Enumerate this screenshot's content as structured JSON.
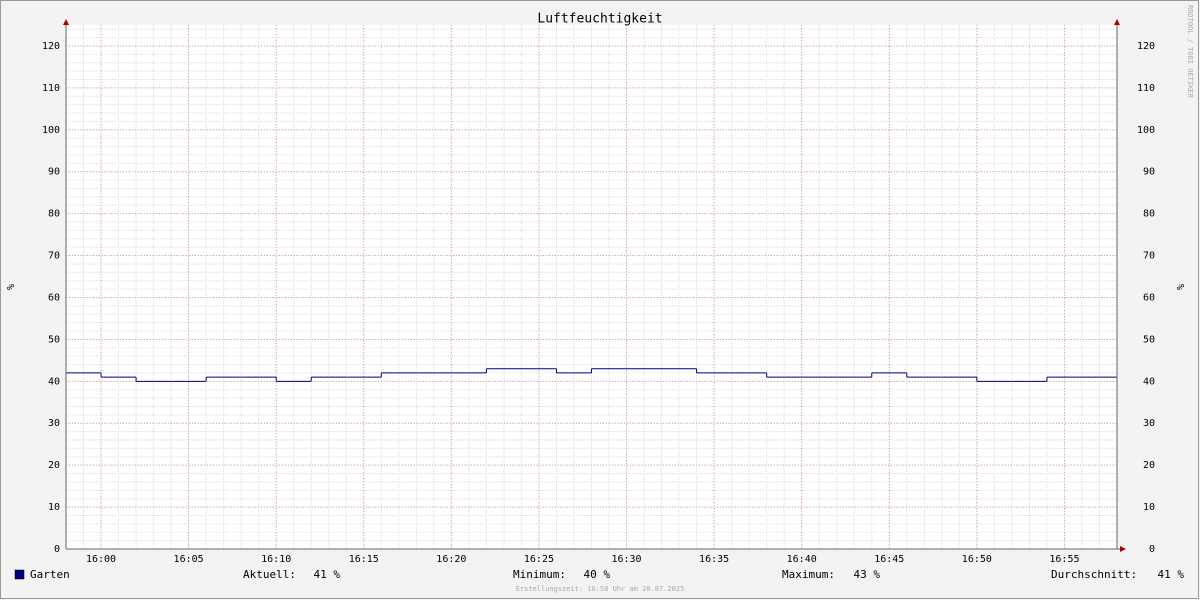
{
  "chart_data": {
    "type": "line",
    "title": "Luftfeuchtigkeit",
    "y_label": "%",
    "step": true,
    "x": [
      960,
      962,
      964,
      966,
      968,
      970,
      972,
      974,
      976,
      978,
      980,
      982,
      984,
      986,
      988,
      990,
      992,
      994,
      996,
      998,
      1000,
      1002,
      1004,
      1006,
      1008,
      1010,
      1012,
      1014,
      1016,
      1018
    ],
    "series": [
      {
        "name": "Garten",
        "color": "#000080",
        "values": [
          42,
          41,
          40,
          40,
          41,
          41,
          40,
          41,
          41,
          42,
          42,
          42,
          43,
          43,
          42,
          43,
          43,
          43,
          42,
          42,
          41,
          41,
          41,
          42,
          41,
          41,
          40,
          40,
          41,
          41
        ]
      }
    ],
    "xlim": [
      958,
      1018
    ],
    "xticks": [
      {
        "value": 960,
        "label": "16:00"
      },
      {
        "value": 965,
        "label": "16:05"
      },
      {
        "value": 970,
        "label": "16:10"
      },
      {
        "value": 975,
        "label": "16:15"
      },
      {
        "value": 980,
        "label": "16:20"
      },
      {
        "value": 985,
        "label": "16:25"
      },
      {
        "value": 990,
        "label": "16:30"
      },
      {
        "value": 995,
        "label": "16:35"
      },
      {
        "value": 1000,
        "label": "16:40"
      },
      {
        "value": 1005,
        "label": "16:45"
      },
      {
        "value": 1010,
        "label": "16:50"
      },
      {
        "value": 1015,
        "label": "16:55"
      }
    ],
    "ylim": [
      0,
      125
    ],
    "yticks": [
      0,
      10,
      20,
      30,
      40,
      50,
      60,
      70,
      80,
      90,
      100,
      110,
      120
    ],
    "grid": true,
    "stats": [
      {
        "label": "Aktuell:",
        "value": "41 %"
      },
      {
        "label": "Minimum:",
        "value": "40 %"
      },
      {
        "label": "Maximum:",
        "value": "43 %"
      },
      {
        "label": "Durchschnitt:",
        "value": "41 %"
      }
    ],
    "watermark": "RRDTOOL / TOBI OETIKER",
    "footer": "Erstellungszeit: 16:58 Uhr am 20.07.2025"
  }
}
